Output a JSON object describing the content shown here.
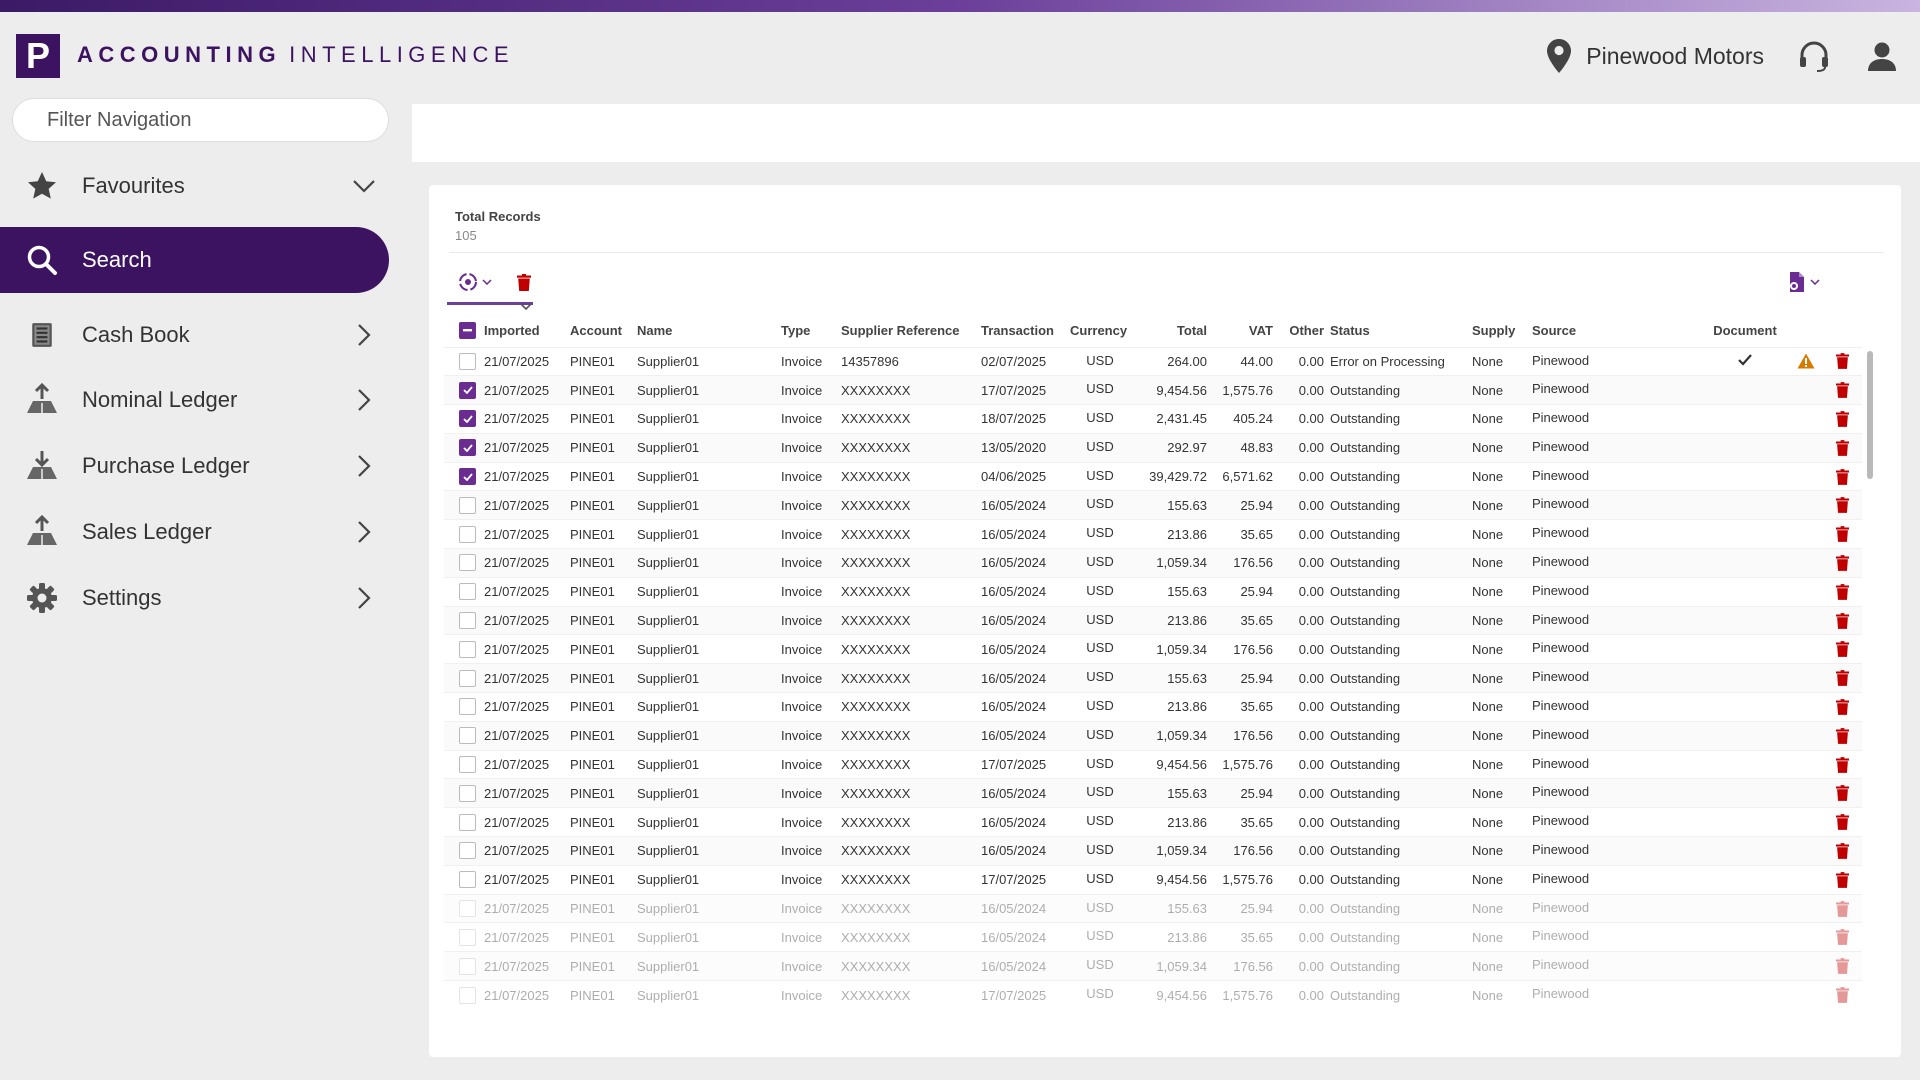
{
  "brand": {
    "logo_letter": "P",
    "name_bold": "ACCOUNTING",
    "name_light": "INTELLIGENCE",
    "primary_color": "#3c1360",
    "accent_color": "#6b2c91"
  },
  "header": {
    "company_name": "Pinewood Motors",
    "icons": [
      "location-pin-icon",
      "headset-icon",
      "user-icon"
    ]
  },
  "sidebar": {
    "filter_placeholder": "Filter Navigation",
    "items": [
      {
        "label": "Favourites",
        "icon": "star-icon",
        "expander": "chevron-down"
      },
      {
        "label": "Search",
        "icon": "search-icon",
        "active": true
      },
      {
        "label": "Cash Book",
        "icon": "cash-book-icon",
        "expander": "chevron-right"
      },
      {
        "label": "Nominal Ledger",
        "icon": "ledger-upload-icon",
        "expander": "chevron-right"
      },
      {
        "label": "Purchase Ledger",
        "icon": "ledger-download-icon",
        "expander": "chevron-right"
      },
      {
        "label": "Sales Ledger",
        "icon": "ledger-upload-icon",
        "expander": "chevron-right"
      },
      {
        "label": "Settings",
        "icon": "gear-icon",
        "expander": "chevron-right"
      }
    ]
  },
  "summary": {
    "total_label": "Total Records",
    "total_value": "105"
  },
  "table": {
    "columns": [
      "Imported",
      "Account",
      "Name",
      "Type",
      "Supplier Reference",
      "Transaction",
      "Currency",
      "Total",
      "VAT",
      "Other",
      "Status",
      "Supply",
      "Source",
      "Document"
    ],
    "rows": [
      {
        "checked": false,
        "imported": "21/07/2025",
        "account": "PINE01",
        "name": "Supplier01",
        "type": "Invoice",
        "supplier_ref": "14357896",
        "transaction": "02/07/2025",
        "currency": "USD",
        "total": "264.00",
        "vat": "44.00",
        "other": "0.00",
        "status": "Error on Processing",
        "supply": "None",
        "source": "Pinewood",
        "document": true,
        "warning": true
      },
      {
        "checked": true,
        "imported": "21/07/2025",
        "account": "PINE01",
        "name": "Supplier01",
        "type": "Invoice",
        "supplier_ref": "XXXXXXXX",
        "transaction": "17/07/2025",
        "currency": "USD",
        "total": "9,454.56",
        "vat": "1,575.76",
        "other": "0.00",
        "status": "Outstanding",
        "supply": "None",
        "source": "Pinewood"
      },
      {
        "checked": true,
        "imported": "21/07/2025",
        "account": "PINE01",
        "name": "Supplier01",
        "type": "Invoice",
        "supplier_ref": "XXXXXXXX",
        "transaction": "18/07/2025",
        "currency": "USD",
        "total": "2,431.45",
        "vat": "405.24",
        "other": "0.00",
        "status": "Outstanding",
        "supply": "None",
        "source": "Pinewood"
      },
      {
        "checked": true,
        "imported": "21/07/2025",
        "account": "PINE01",
        "name": "Supplier01",
        "type": "Invoice",
        "supplier_ref": "XXXXXXXX",
        "transaction": "13/05/2020",
        "currency": "USD",
        "total": "292.97",
        "vat": "48.83",
        "other": "0.00",
        "status": "Outstanding",
        "supply": "None",
        "source": "Pinewood"
      },
      {
        "checked": true,
        "imported": "21/07/2025",
        "account": "PINE01",
        "name": "Supplier01",
        "type": "Invoice",
        "supplier_ref": "XXXXXXXX",
        "transaction": "04/06/2025",
        "currency": "USD",
        "total": "39,429.72",
        "vat": "6,571.62",
        "other": "0.00",
        "status": "Outstanding",
        "supply": "None",
        "source": "Pinewood"
      },
      {
        "checked": false,
        "imported": "21/07/2025",
        "account": "PINE01",
        "name": "Supplier01",
        "type": "Invoice",
        "supplier_ref": "XXXXXXXX",
        "transaction": "16/05/2024",
        "currency": "USD",
        "total": "155.63",
        "vat": "25.94",
        "other": "0.00",
        "status": "Outstanding",
        "supply": "None",
        "source": "Pinewood"
      },
      {
        "checked": false,
        "imported": "21/07/2025",
        "account": "PINE01",
        "name": "Supplier01",
        "type": "Invoice",
        "supplier_ref": "XXXXXXXX",
        "transaction": "16/05/2024",
        "currency": "USD",
        "total": "213.86",
        "vat": "35.65",
        "other": "0.00",
        "status": "Outstanding",
        "supply": "None",
        "source": "Pinewood"
      },
      {
        "checked": false,
        "imported": "21/07/2025",
        "account": "PINE01",
        "name": "Supplier01",
        "type": "Invoice",
        "supplier_ref": "XXXXXXXX",
        "transaction": "16/05/2024",
        "currency": "USD",
        "total": "1,059.34",
        "vat": "176.56",
        "other": "0.00",
        "status": "Outstanding",
        "supply": "None",
        "source": "Pinewood"
      },
      {
        "checked": false,
        "imported": "21/07/2025",
        "account": "PINE01",
        "name": "Supplier01",
        "type": "Invoice",
        "supplier_ref": "XXXXXXXX",
        "transaction": "16/05/2024",
        "currency": "USD",
        "total": "155.63",
        "vat": "25.94",
        "other": "0.00",
        "status": "Outstanding",
        "supply": "None",
        "source": "Pinewood"
      },
      {
        "checked": false,
        "imported": "21/07/2025",
        "account": "PINE01",
        "name": "Supplier01",
        "type": "Invoice",
        "supplier_ref": "XXXXXXXX",
        "transaction": "16/05/2024",
        "currency": "USD",
        "total": "213.86",
        "vat": "35.65",
        "other": "0.00",
        "status": "Outstanding",
        "supply": "None",
        "source": "Pinewood"
      },
      {
        "checked": false,
        "imported": "21/07/2025",
        "account": "PINE01",
        "name": "Supplier01",
        "type": "Invoice",
        "supplier_ref": "XXXXXXXX",
        "transaction": "16/05/2024",
        "currency": "USD",
        "total": "1,059.34",
        "vat": "176.56",
        "other": "0.00",
        "status": "Outstanding",
        "supply": "None",
        "source": "Pinewood"
      },
      {
        "checked": false,
        "imported": "21/07/2025",
        "account": "PINE01",
        "name": "Supplier01",
        "type": "Invoice",
        "supplier_ref": "XXXXXXXX",
        "transaction": "16/05/2024",
        "currency": "USD",
        "total": "155.63",
        "vat": "25.94",
        "other": "0.00",
        "status": "Outstanding",
        "supply": "None",
        "source": "Pinewood"
      },
      {
        "checked": false,
        "imported": "21/07/2025",
        "account": "PINE01",
        "name": "Supplier01",
        "type": "Invoice",
        "supplier_ref": "XXXXXXXX",
        "transaction": "16/05/2024",
        "currency": "USD",
        "total": "213.86",
        "vat": "35.65",
        "other": "0.00",
        "status": "Outstanding",
        "supply": "None",
        "source": "Pinewood"
      },
      {
        "checked": false,
        "imported": "21/07/2025",
        "account": "PINE01",
        "name": "Supplier01",
        "type": "Invoice",
        "supplier_ref": "XXXXXXXX",
        "transaction": "16/05/2024",
        "currency": "USD",
        "total": "1,059.34",
        "vat": "176.56",
        "other": "0.00",
        "status": "Outstanding",
        "supply": "None",
        "source": "Pinewood"
      },
      {
        "checked": false,
        "imported": "21/07/2025",
        "account": "PINE01",
        "name": "Supplier01",
        "type": "Invoice",
        "supplier_ref": "XXXXXXXX",
        "transaction": "17/07/2025",
        "currency": "USD",
        "total": "9,454.56",
        "vat": "1,575.76",
        "other": "0.00",
        "status": "Outstanding",
        "supply": "None",
        "source": "Pinewood"
      },
      {
        "checked": false,
        "imported": "21/07/2025",
        "account": "PINE01",
        "name": "Supplier01",
        "type": "Invoice",
        "supplier_ref": "XXXXXXXX",
        "transaction": "16/05/2024",
        "currency": "USD",
        "total": "155.63",
        "vat": "25.94",
        "other": "0.00",
        "status": "Outstanding",
        "supply": "None",
        "source": "Pinewood"
      },
      {
        "checked": false,
        "imported": "21/07/2025",
        "account": "PINE01",
        "name": "Supplier01",
        "type": "Invoice",
        "supplier_ref": "XXXXXXXX",
        "transaction": "16/05/2024",
        "currency": "USD",
        "total": "213.86",
        "vat": "35.65",
        "other": "0.00",
        "status": "Outstanding",
        "supply": "None",
        "source": "Pinewood"
      },
      {
        "checked": false,
        "imported": "21/07/2025",
        "account": "PINE01",
        "name": "Supplier01",
        "type": "Invoice",
        "supplier_ref": "XXXXXXXX",
        "transaction": "16/05/2024",
        "currency": "USD",
        "total": "1,059.34",
        "vat": "176.56",
        "other": "0.00",
        "status": "Outstanding",
        "supply": "None",
        "source": "Pinewood"
      },
      {
        "checked": false,
        "imported": "21/07/2025",
        "account": "PINE01",
        "name": "Supplier01",
        "type": "Invoice",
        "supplier_ref": "XXXXXXXX",
        "transaction": "17/07/2025",
        "currency": "USD",
        "total": "9,454.56",
        "vat": "1,575.76",
        "other": "0.00",
        "status": "Outstanding",
        "supply": "None",
        "source": "Pinewood"
      },
      {
        "checked": false,
        "faded": true,
        "imported": "21/07/2025",
        "account": "PINE01",
        "name": "Supplier01",
        "type": "Invoice",
        "supplier_ref": "XXXXXXXX",
        "transaction": "16/05/2024",
        "currency": "USD",
        "total": "155.63",
        "vat": "25.94",
        "other": "0.00",
        "status": "Outstanding",
        "supply": "None",
        "source": "Pinewood"
      },
      {
        "checked": false,
        "faded": true,
        "imported": "21/07/2025",
        "account": "PINE01",
        "name": "Supplier01",
        "type": "Invoice",
        "supplier_ref": "XXXXXXXX",
        "transaction": "16/05/2024",
        "currency": "USD",
        "total": "213.86",
        "vat": "35.65",
        "other": "0.00",
        "status": "Outstanding",
        "supply": "None",
        "source": "Pinewood"
      },
      {
        "checked": false,
        "faded": true,
        "imported": "21/07/2025",
        "account": "PINE01",
        "name": "Supplier01",
        "type": "Invoice",
        "supplier_ref": "XXXXXXXX",
        "transaction": "16/05/2024",
        "currency": "USD",
        "total": "1,059.34",
        "vat": "176.56",
        "other": "0.00",
        "status": "Outstanding",
        "supply": "None",
        "source": "Pinewood"
      },
      {
        "checked": false,
        "faded": true,
        "imported": "21/07/2025",
        "account": "PINE01",
        "name": "Supplier01",
        "type": "Invoice",
        "supplier_ref": "XXXXXXXX",
        "transaction": "17/07/2025",
        "currency": "USD",
        "total": "9,454.56",
        "vat": "1,575.76",
        "other": "0.00",
        "status": "Outstanding",
        "supply": "None",
        "source": "Pinewood"
      }
    ]
  }
}
